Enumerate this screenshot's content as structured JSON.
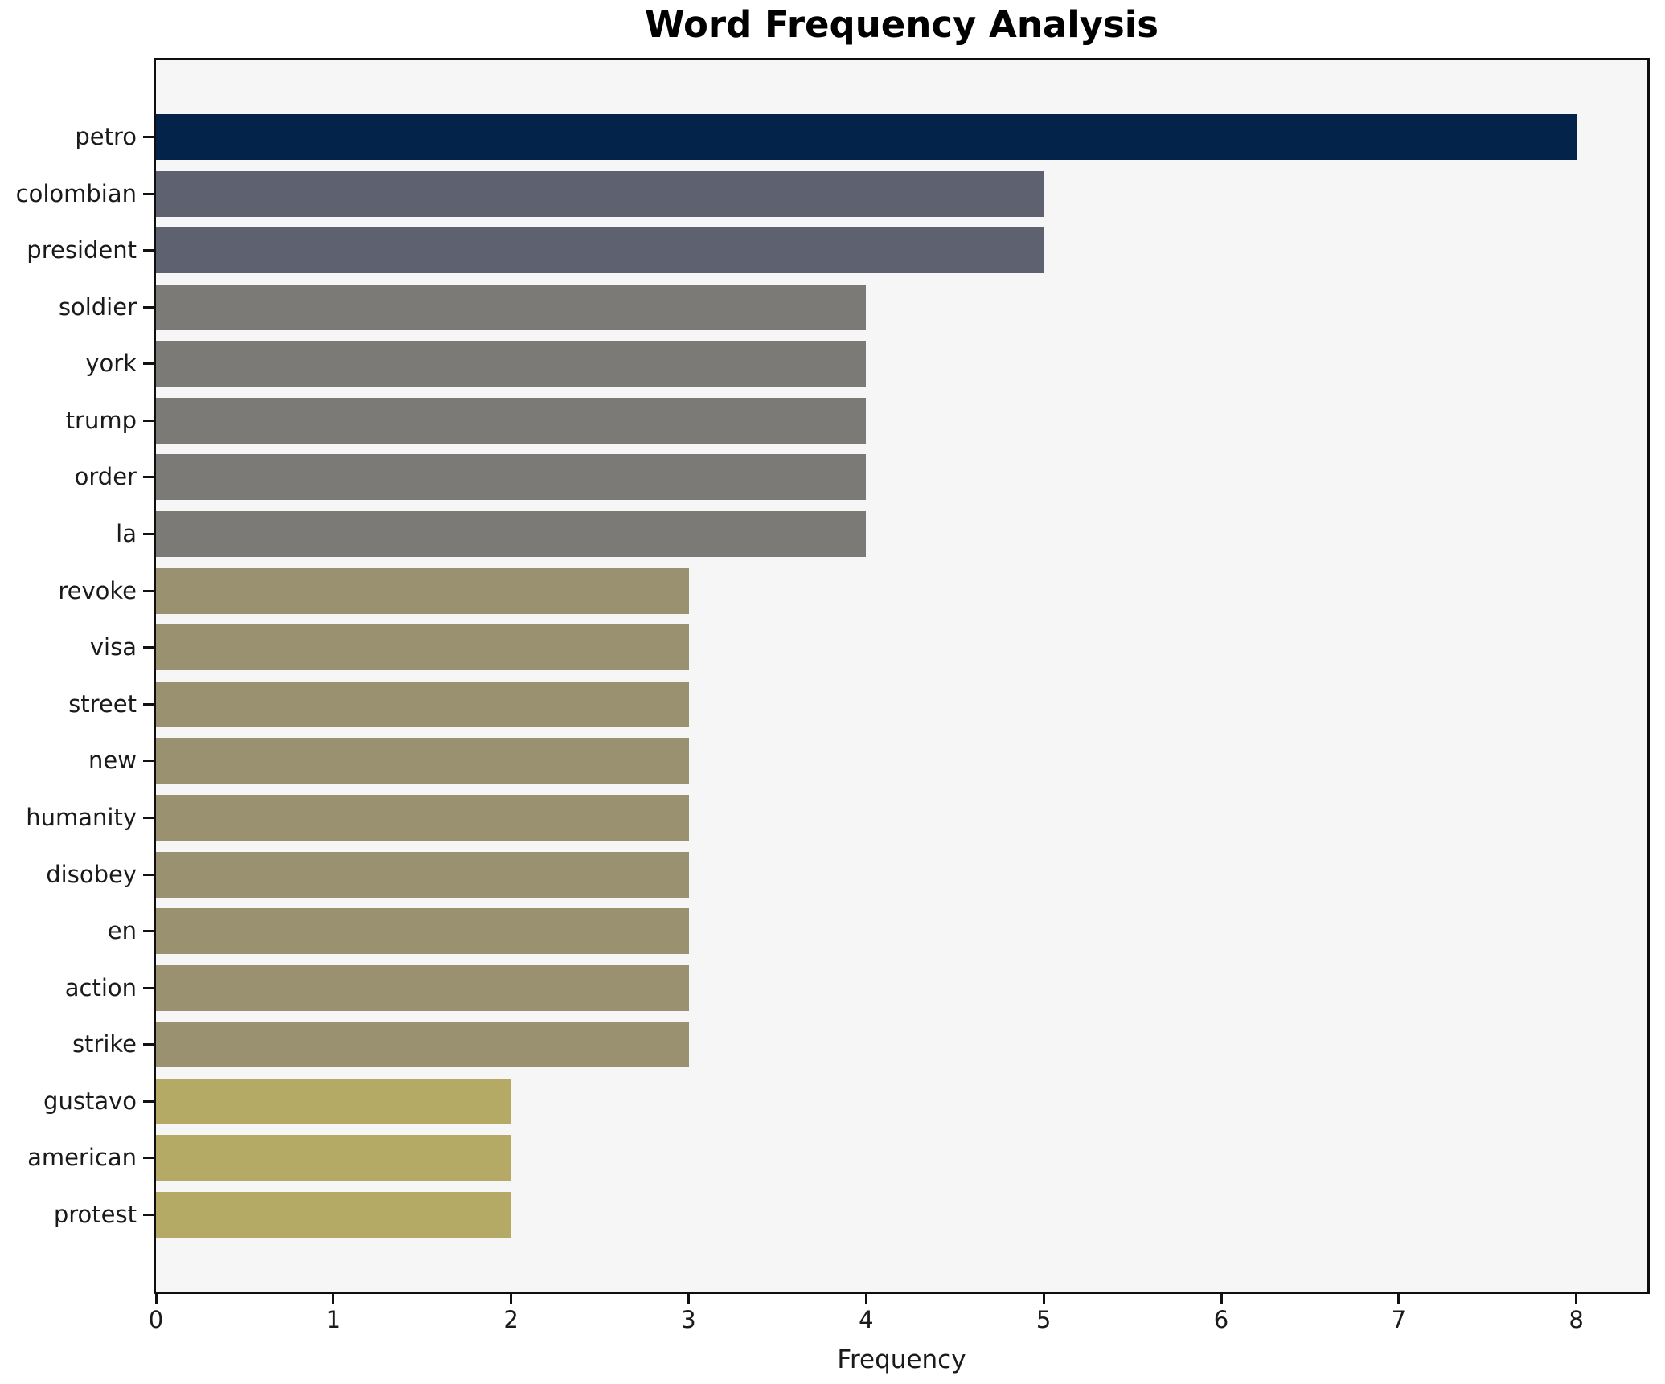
{
  "figure": {
    "background": "#ffffff",
    "plot_background": "#f6f6f7",
    "spine_color": "#0f0f0f",
    "tick_color": "#111111",
    "text_color": "#1a1a1a"
  },
  "chart_data": {
    "type": "bar",
    "orientation": "horizontal",
    "title": "Word Frequency Analysis",
    "xlabel": "Frequency",
    "ylabel": "",
    "categories": [
      "petro",
      "colombian",
      "president",
      "soldier",
      "york",
      "trump",
      "order",
      "la",
      "revoke",
      "visa",
      "street",
      "new",
      "humanity",
      "disobey",
      "en",
      "action",
      "strike",
      "gustavo",
      "american",
      "protest"
    ],
    "values": [
      8,
      5,
      5,
      4,
      4,
      4,
      4,
      4,
      3,
      3,
      3,
      3,
      3,
      3,
      3,
      3,
      3,
      2,
      2,
      2
    ],
    "xlim": [
      0,
      8.4
    ],
    "xticks": [
      0,
      1,
      2,
      3,
      4,
      5,
      6,
      7,
      8
    ],
    "grid": false,
    "bar_colors_by_value": {
      "8": "#04234b",
      "5": "#5d6170",
      "4": "#7b7a76",
      "3": "#999170",
      "2": "#b5a966"
    }
  }
}
